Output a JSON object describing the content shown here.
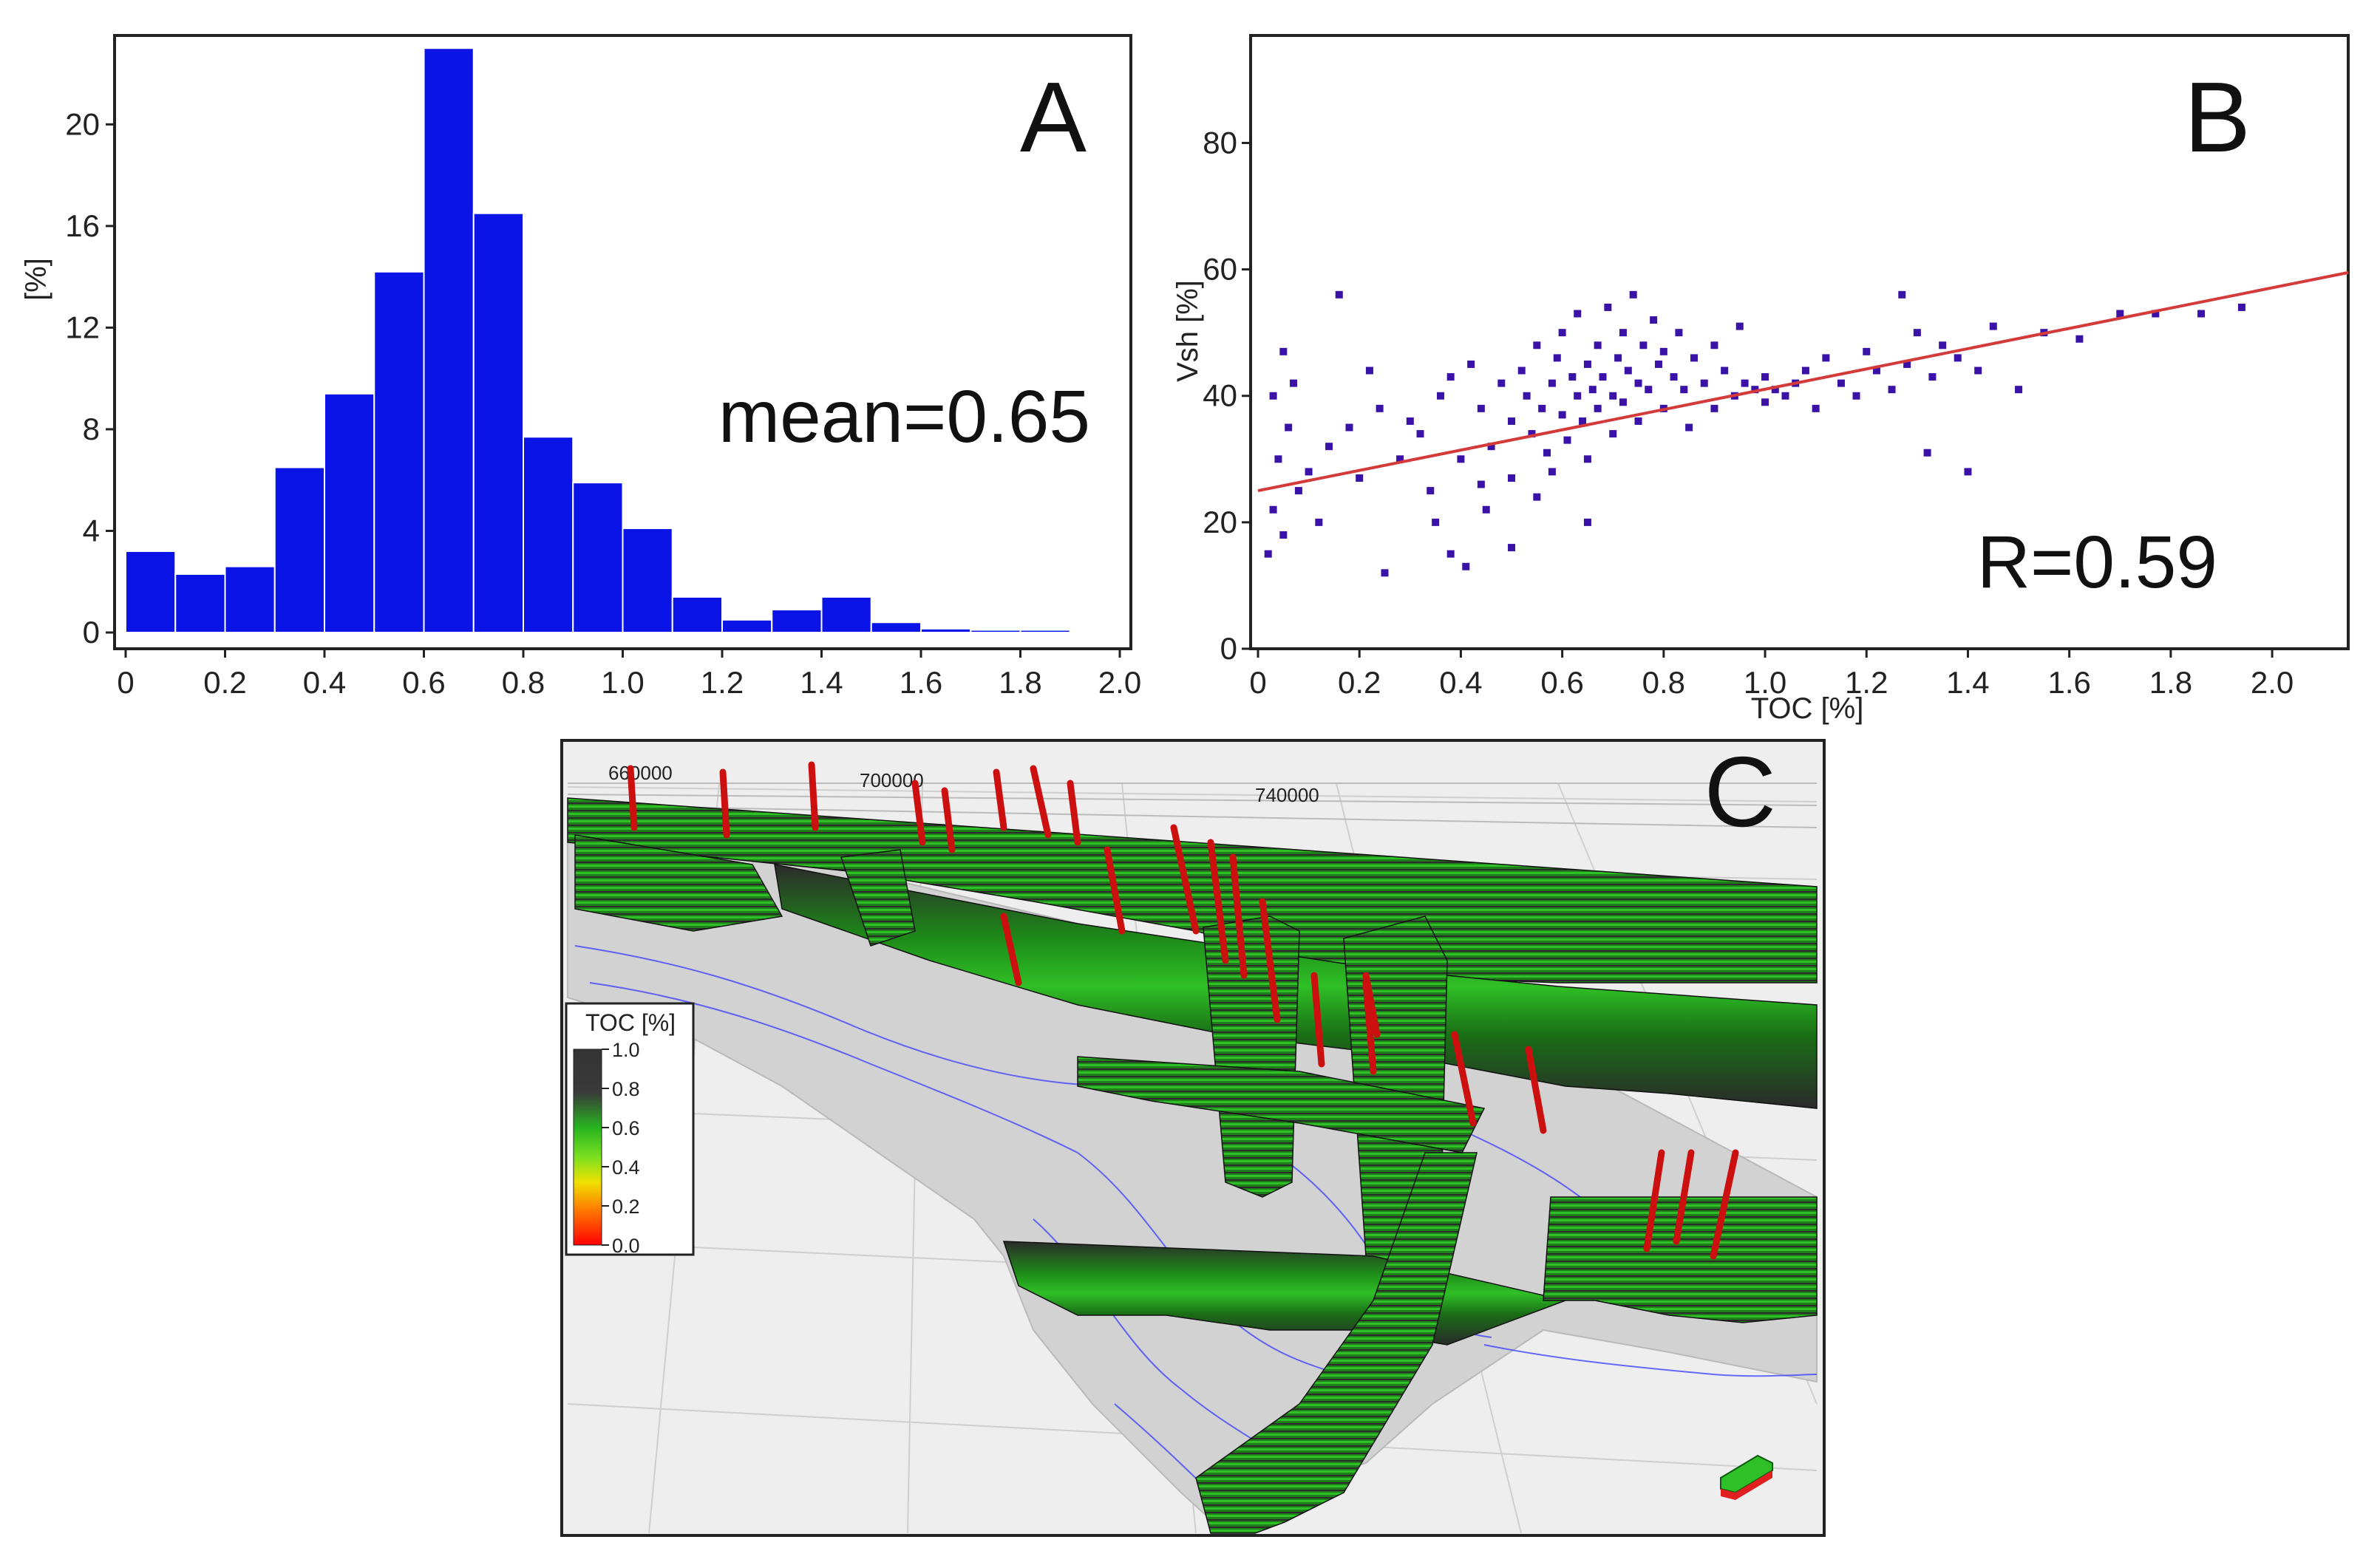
{
  "chart_data": [
    {
      "panel": "A",
      "type": "bar",
      "title": "",
      "xlabel": "",
      "ylabel": "[%]",
      "bin_edges": [
        0,
        0.1,
        0.2,
        0.3,
        0.4,
        0.5,
        0.6,
        0.7,
        0.8,
        0.9,
        1.0,
        1.1,
        1.2,
        1.3,
        1.4,
        1.5,
        1.6,
        1.7,
        1.8,
        1.9,
        2.0
      ],
      "values": [
        3.2,
        2.3,
        2.6,
        6.5,
        9.4,
        14.2,
        23.0,
        16.5,
        7.7,
        5.9,
        4.1,
        1.4,
        0.5,
        0.9,
        1.4,
        0.4,
        0.15,
        0.1,
        0.1,
        0.05
      ],
      "xlim": [
        0,
        2.0
      ],
      "ylim": [
        0,
        23.5
      ],
      "xticks": [
        "0",
        "0.2",
        "0.4",
        "0.6",
        "0.8",
        "1.0",
        "1.2",
        "1.4",
        "1.6",
        "1.8",
        "2.0"
      ],
      "yticks": [
        "0",
        "4",
        "8",
        "12",
        "16",
        "20"
      ],
      "annotation": "mean=0.65",
      "bar_color": "#0a14e6"
    },
    {
      "panel": "B",
      "type": "scatter",
      "title": "",
      "xlabel": "TOC [%]",
      "ylabel": "Vsh [%]",
      "xlim": [
        0,
        2.15
      ],
      "ylim": [
        0,
        97
      ],
      "xticks": [
        "0",
        "0.2",
        "0.4",
        "0.6",
        "0.8",
        "1.0",
        "1.2",
        "1.4",
        "1.6",
        "1.8",
        "2.0"
      ],
      "yticks": [
        "0",
        "20",
        "40",
        "60",
        "80"
      ],
      "annotation": "R=0.59",
      "fit_line": {
        "x": [
          0,
          2.15
        ],
        "y": [
          25,
          59.5
        ],
        "color": "#d43a3a"
      },
      "point_color": "#3a12a8",
      "points": [
        [
          0.02,
          15
        ],
        [
          0.03,
          22
        ],
        [
          0.05,
          18
        ],
        [
          0.04,
          30
        ],
        [
          0.06,
          35
        ],
        [
          0.08,
          25
        ],
        [
          0.03,
          40
        ],
        [
          0.05,
          47
        ],
        [
          0.07,
          42
        ],
        [
          0.1,
          28
        ],
        [
          0.12,
          20
        ],
        [
          0.14,
          32
        ],
        [
          0.16,
          56
        ],
        [
          0.18,
          35
        ],
        [
          0.2,
          27
        ],
        [
          0.22,
          44
        ],
        [
          0.24,
          38
        ],
        [
          0.25,
          12
        ],
        [
          0.28,
          30
        ],
        [
          0.3,
          36
        ],
        [
          0.32,
          34
        ],
        [
          0.34,
          25
        ],
        [
          0.36,
          40
        ],
        [
          0.38,
          43
        ],
        [
          0.4,
          30
        ],
        [
          0.41,
          13
        ],
        [
          0.42,
          45
        ],
        [
          0.44,
          38
        ],
        [
          0.46,
          32
        ],
        [
          0.48,
          42
        ],
        [
          0.5,
          36
        ],
        [
          0.5,
          27
        ],
        [
          0.52,
          44
        ],
        [
          0.53,
          40
        ],
        [
          0.54,
          34
        ],
        [
          0.55,
          48
        ],
        [
          0.56,
          38
        ],
        [
          0.57,
          31
        ],
        [
          0.58,
          42
        ],
        [
          0.59,
          46
        ],
        [
          0.6,
          37
        ],
        [
          0.6,
          50
        ],
        [
          0.61,
          33
        ],
        [
          0.62,
          43
        ],
        [
          0.63,
          40
        ],
        [
          0.63,
          53
        ],
        [
          0.64,
          36
        ],
        [
          0.65,
          45
        ],
        [
          0.65,
          30
        ],
        [
          0.66,
          41
        ],
        [
          0.67,
          48
        ],
        [
          0.67,
          38
        ],
        [
          0.68,
          43
        ],
        [
          0.69,
          54
        ],
        [
          0.7,
          40
        ],
        [
          0.7,
          34
        ],
        [
          0.71,
          46
        ],
        [
          0.72,
          50
        ],
        [
          0.72,
          39
        ],
        [
          0.73,
          44
        ],
        [
          0.74,
          56
        ],
        [
          0.75,
          42
        ],
        [
          0.75,
          36
        ],
        [
          0.76,
          48
        ],
        [
          0.77,
          41
        ],
        [
          0.78,
          52
        ],
        [
          0.79,
          45
        ],
        [
          0.8,
          38
        ],
        [
          0.8,
          47
        ],
        [
          0.82,
          43
        ],
        [
          0.83,
          50
        ],
        [
          0.84,
          41
        ],
        [
          0.85,
          35
        ],
        [
          0.86,
          46
        ],
        [
          0.88,
          42
        ],
        [
          0.9,
          48
        ],
        [
          0.9,
          38
        ],
        [
          0.92,
          44
        ],
        [
          0.94,
          40
        ],
        [
          0.95,
          51
        ],
        [
          0.96,
          42
        ],
        [
          0.98,
          41
        ],
        [
          1.0,
          43
        ],
        [
          1.0,
          39
        ],
        [
          1.02,
          41
        ],
        [
          1.04,
          40
        ],
        [
          1.06,
          42
        ],
        [
          1.08,
          44
        ],
        [
          1.1,
          38
        ],
        [
          1.12,
          46
        ],
        [
          1.15,
          42
        ],
        [
          1.18,
          40
        ],
        [
          1.2,
          47
        ],
        [
          1.22,
          44
        ],
        [
          1.25,
          41
        ],
        [
          1.27,
          56
        ],
        [
          1.28,
          45
        ],
        [
          1.3,
          50
        ],
        [
          1.32,
          31
        ],
        [
          1.33,
          43
        ],
        [
          1.35,
          48
        ],
        [
          1.38,
          46
        ],
        [
          1.4,
          28
        ],
        [
          1.42,
          44
        ],
        [
          1.45,
          51
        ],
        [
          1.5,
          41
        ],
        [
          1.55,
          50
        ],
        [
          1.62,
          49
        ],
        [
          1.7,
          53
        ],
        [
          1.77,
          53
        ],
        [
          1.86,
          53
        ],
        [
          1.94,
          54
        ],
        [
          0.35,
          20
        ],
        [
          0.45,
          22
        ],
        [
          0.55,
          24
        ],
        [
          0.65,
          20
        ],
        [
          0.58,
          28
        ],
        [
          0.5,
          16
        ],
        [
          0.44,
          26
        ],
        [
          0.38,
          15
        ]
      ]
    }
  ],
  "panel_a": {
    "label": "A",
    "annotation": "mean=0.65",
    "ylabel": "[%]"
  },
  "panel_b": {
    "label": "B",
    "annotation": "R=0.59",
    "xlabel": "TOC [%]",
    "ylabel": "Vsh [%]"
  },
  "panel_c": {
    "label": "C",
    "coord_labels": [
      "660000",
      "700000",
      "740000"
    ],
    "legend": {
      "title": "TOC [%]",
      "ticks": [
        "1.0",
        "0.8",
        "0.6",
        "0.4",
        "0.2",
        "0.0"
      ]
    },
    "colors": {
      "high": "#333333",
      "mid": "#27b41f",
      "low_mid": "#f0e000",
      "low": "#ff7a00",
      "zero": "#ff0000",
      "well": "#cc1010",
      "surface": "#d2d2d2",
      "contour": "#3a3aff"
    }
  }
}
